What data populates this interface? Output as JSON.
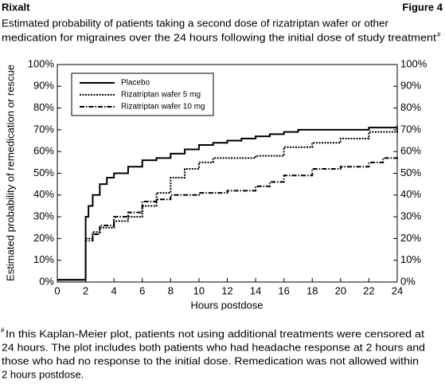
{
  "chart_data": {
    "type": "step",
    "header_left": "Rixalt",
    "header_right": "Figure 4",
    "title": [
      "Estimated probability of patients taking a second dose of rizatriptan wafer or other",
      "medication for migraines over the 24 hours following the initial dose of study treatment"
    ],
    "note_mark": "#",
    "xlabel": "Hours postdose",
    "ylabel": "Estimated probability of remedication or rescue",
    "xlim": [
      0,
      24
    ],
    "xticks": [
      0,
      2,
      4,
      6,
      8,
      10,
      12,
      14,
      16,
      18,
      20,
      22,
      24
    ],
    "ylim": [
      0,
      100
    ],
    "yticks": [
      {
        "value": 0,
        "label": "0%"
      },
      {
        "value": 10,
        "label": "10%"
      },
      {
        "value": 20,
        "label": "20%"
      },
      {
        "value": 30,
        "label": "30%"
      },
      {
        "value": 40,
        "label": "40%"
      },
      {
        "value": 50,
        "label": "50%"
      },
      {
        "value": 60,
        "label": "60%"
      },
      {
        "value": 70,
        "label": "70%"
      },
      {
        "value": 80,
        "label": "80%"
      },
      {
        "value": 90,
        "label": "90%"
      },
      {
        "value": 100,
        "label": "100%"
      }
    ],
    "y2lim": [
      0,
      100
    ],
    "y2ticks": [
      {
        "value": 0,
        "label": "0%"
      },
      {
        "value": 10,
        "label": "10%"
      },
      {
        "value": 20,
        "label": "20%"
      },
      {
        "value": 30,
        "label": "30%"
      },
      {
        "value": 40,
        "label": "40%"
      },
      {
        "value": 50,
        "label": "50%"
      },
      {
        "value": 60,
        "label": "60%"
      },
      {
        "value": 70,
        "label": "70%"
      },
      {
        "value": 80,
        "label": "80%"
      },
      {
        "value": 90,
        "label": "90%"
      },
      {
        "value": 100,
        "label": "100%"
      }
    ],
    "legend": "upper left",
    "series": [
      {
        "name": "Placebo",
        "color": "#000000",
        "x": [
          0,
          2,
          2.2,
          2.5,
          3,
          3.5,
          4,
          5,
          6,
          7,
          8,
          9,
          10,
          11,
          12,
          13,
          14,
          15,
          16,
          17,
          22,
          24
        ],
        "values": [
          1,
          30,
          35,
          40,
          45,
          48,
          50,
          53,
          56,
          57,
          59,
          61,
          63,
          64,
          65,
          66,
          67,
          68,
          69,
          70,
          71,
          71
        ]
      },
      {
        "name": "Rizatriptan wafer 5 mg",
        "color": "#000000",
        "x": [
          0,
          2,
          2.5,
          3,
          4,
          5,
          6,
          7,
          8,
          9,
          10,
          11,
          14,
          16,
          18,
          20,
          22,
          24
        ],
        "values": [
          1,
          20,
          23,
          25,
          28,
          30,
          35,
          41,
          48,
          52,
          55,
          57,
          58,
          62,
          64,
          66,
          69,
          72
        ]
      },
      {
        "name": "Rizatriptan wafer 10 mg",
        "color": "#000000",
        "x": [
          0,
          2,
          2.5,
          3,
          4,
          5,
          6,
          7,
          8,
          10,
          12,
          14,
          15,
          16,
          18,
          20,
          22,
          23,
          24
        ],
        "values": [
          1,
          19,
          22,
          26,
          30,
          32,
          37,
          38,
          40,
          41,
          42,
          44,
          46,
          49,
          52,
          53,
          55,
          57,
          58
        ]
      }
    ],
    "footnote": [
      "In this Kaplan-Meier plot, patients not using additional treatments were censored at",
      "24 hours. The plot includes both patients who had headache response at 2 hours and",
      "those who had no response to the initial dose. Remedication was not allowed within",
      "2 hours postdose."
    ]
  }
}
